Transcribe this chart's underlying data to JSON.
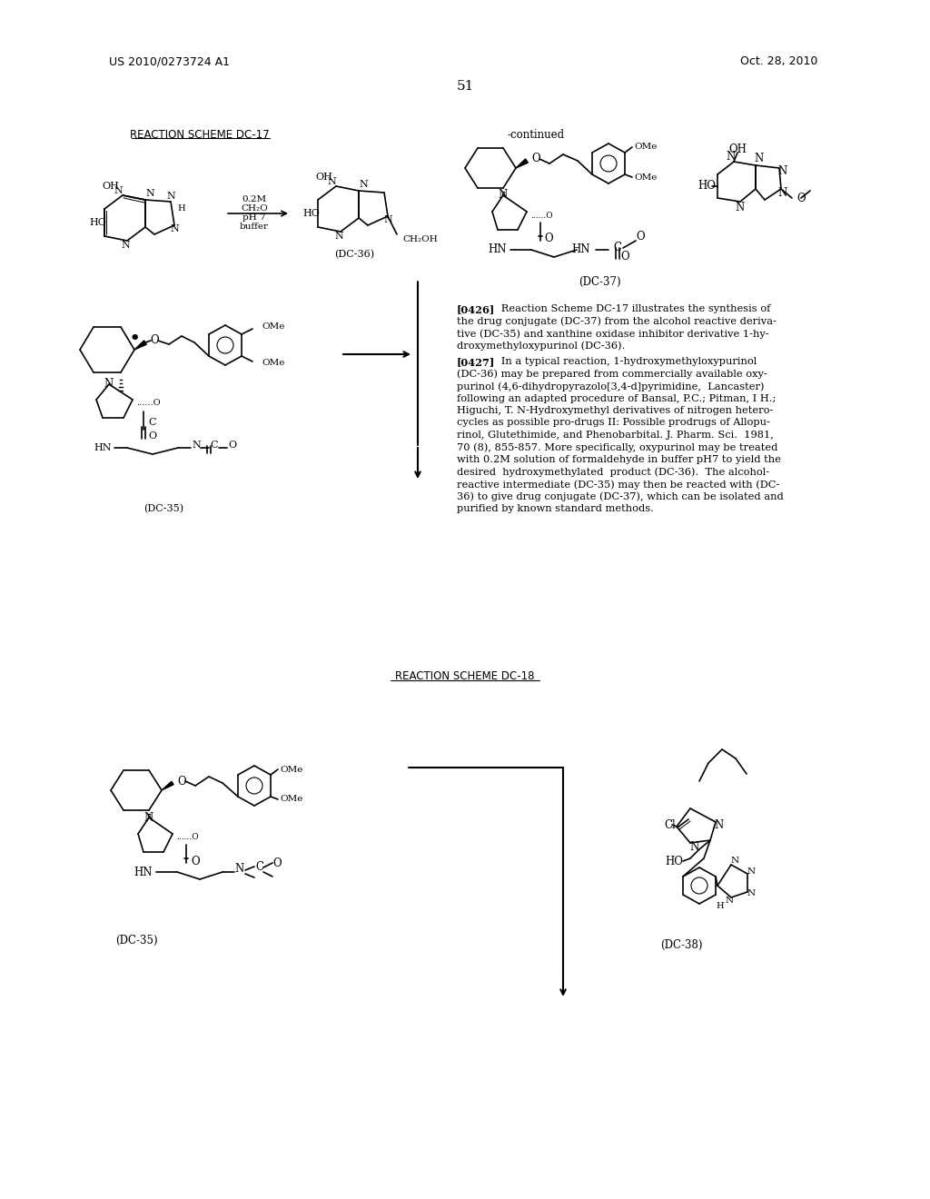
{
  "page_header_left": "US 2010/0273724 A1",
  "page_header_right": "Oct. 28, 2010",
  "page_number": "51",
  "bg_color": "#ffffff",
  "text_color": "#000000",
  "scheme1_title": "REACTION SCHEME DC-17",
  "scheme2_title": "REACTION SCHEME DC-18",
  "continued_label": "-continued",
  "reaction_conditions_1": "0.2M\nCH₂O\npH 7\nbuffer",
  "compound_dc36": "(DC-36)",
  "compound_dc35": "(DC-35)",
  "compound_dc37": "(DC-37)",
  "compound_dc38": "(DC-38)",
  "para_0426_bold": "[0426]",
  "para_0426_text": "   Reaction Scheme DC-17 illustrates the synthesis of the drug conjugate (DC-37) from the alcohol reactive derivative (DC-35) and xanthine oxidase inhibitor derivative 1-hydroxymethyloxypurinol (DC-36).",
  "para_0427_bold": "[0427]",
  "para_0427_text": "   In a typical reaction, 1-hydroxymethyloxypurinol (DC-36) may be prepared from commercially available oxypurinol (4,6-dihydropyrazolo[3,4-d]pyrimidine, Lancaster) following an adapted procedure of Bansal, P.C.; Pitman, I H.; Higuchi, T. N-Hydroxymethyl derivatives of nitrogen heterocycles as possible pro-drugs II: Possible prodrugs of Allopurinol, Glutethimide, and Phenobarbital. J. Pharm. Sci. 1981, 70 (8), 855-857. More specifically, oxypurinol may be treated with 0.2M solution of formaldehyde in buffer pH7 to yield the desired hydroxymethylated product (DC-36). The alcohol-reactive intermediate (DC-35) may then be reacted with (DC-36) to give drug conjugate (DC-37), which can be isolated and purified by known standard methods."
}
